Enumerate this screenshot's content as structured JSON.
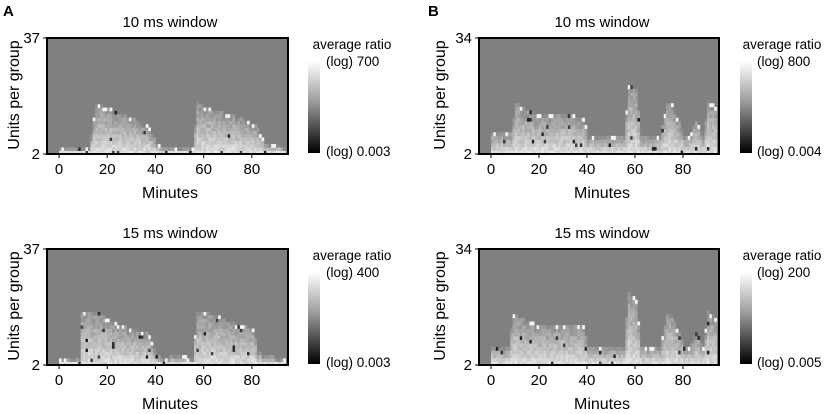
{
  "figure": {
    "panel_labels": [
      "A",
      "B"
    ]
  },
  "chart_data": [
    {
      "type": "heatmap",
      "panel": "A",
      "title": "10 ms window",
      "xlabel": "Minutes",
      "ylabel": "Units per group",
      "xlim": [
        -5,
        95
      ],
      "x_ticks": [
        0,
        20,
        40,
        60,
        80
      ],
      "x_tick_labels": [
        "0",
        "20",
        "40",
        "60",
        "80"
      ],
      "ylim": [
        2,
        37
      ],
      "y_ticks": [
        2,
        37
      ],
      "y_tick_labels": [
        "2",
        "37"
      ],
      "colorbar": {
        "label": "average ratio",
        "scale": "log",
        "max_label": "(log) 700",
        "min_label": "(log) 0.003",
        "max": 700,
        "min": 0.003
      },
      "profile_minutes": [
        2,
        12,
        15,
        20,
        25,
        30,
        35,
        37,
        40,
        42,
        50,
        55,
        57,
        60,
        65,
        70,
        75,
        80,
        82,
        85,
        90,
        93
      ],
      "profile_max_units": [
        3,
        3,
        16,
        15,
        13,
        12,
        10,
        9,
        4,
        3,
        3,
        3,
        17,
        15,
        14,
        13,
        12,
        10,
        9,
        4,
        4,
        3
      ]
    },
    {
      "type": "heatmap",
      "panel": "A",
      "title": "15 ms window",
      "xlabel": "Minutes",
      "ylabel": "Units per group",
      "xlim": [
        -5,
        95
      ],
      "x_ticks": [
        0,
        20,
        40,
        60,
        80
      ],
      "x_tick_labels": [
        "0",
        "20",
        "40",
        "60",
        "80"
      ],
      "ylim": [
        2,
        37
      ],
      "y_ticks": [
        2,
        37
      ],
      "y_tick_labels": [
        "2",
        "37"
      ],
      "colorbar": {
        "label": "average ratio",
        "scale": "log",
        "max_label": "(log) 400",
        "min_label": "(log) 0.003",
        "max": 400,
        "min": 0.003
      },
      "profile_minutes": [
        2,
        8,
        9,
        15,
        20,
        25,
        30,
        35,
        37,
        40,
        42,
        50,
        55,
        57,
        60,
        65,
        70,
        75,
        80,
        82,
        85,
        93
      ],
      "profile_max_units": [
        3,
        3,
        17,
        17,
        15,
        13,
        12,
        11,
        10,
        4,
        3,
        4,
        3,
        17,
        17,
        16,
        14,
        13,
        12,
        5,
        4,
        3
      ]
    },
    {
      "type": "heatmap",
      "panel": "B",
      "title": "10 ms window",
      "xlabel": "Minutes",
      "ylabel": "Units per group",
      "xlim": [
        -5,
        95
      ],
      "x_ticks": [
        0,
        20,
        40,
        60,
        80
      ],
      "x_tick_labels": [
        "0",
        "20",
        "40",
        "60",
        "80"
      ],
      "ylim": [
        2,
        34
      ],
      "y_ticks": [
        2,
        34
      ],
      "y_tick_labels": [
        "2",
        "34"
      ],
      "colorbar": {
        "label": "average ratio",
        "scale": "log",
        "max_label": "(log) 800",
        "min_label": "(log) 0.004",
        "max": 800,
        "min": 0.004
      },
      "profile_minutes": [
        0,
        8,
        10,
        15,
        20,
        30,
        38,
        40,
        50,
        55,
        57,
        60,
        62,
        65,
        70,
        73,
        75,
        80,
        82,
        85,
        88,
        90,
        93
      ],
      "profile_max_units": [
        7,
        7,
        15,
        13,
        12,
        12,
        11,
        6,
        6,
        6,
        20,
        19,
        6,
        6,
        6,
        15,
        15,
        6,
        6,
        10,
        6,
        16,
        14
      ]
    },
    {
      "type": "heatmap",
      "panel": "B",
      "title": "15 ms window",
      "xlabel": "Minutes",
      "ylabel": "Units per group",
      "xlim": [
        -5,
        95
      ],
      "x_ticks": [
        0,
        20,
        40,
        60,
        80
      ],
      "x_tick_labels": [
        "0",
        "20",
        "40",
        "60",
        "80"
      ],
      "ylim": [
        2,
        34
      ],
      "y_ticks": [
        2,
        34
      ],
      "y_tick_labels": [
        "2",
        "34"
      ],
      "colorbar": {
        "label": "average ratio",
        "scale": "log",
        "max_label": "(log) 200",
        "min_label": "(log) 0.005",
        "max": 200,
        "min": 0.005
      },
      "profile_minutes": [
        0,
        7,
        9,
        15,
        20,
        30,
        38,
        40,
        50,
        55,
        57,
        60,
        62,
        65,
        70,
        73,
        75,
        80,
        82,
        85,
        88,
        90,
        93
      ],
      "profile_max_units": [
        6,
        6,
        15,
        13,
        12,
        12,
        12,
        6,
        6,
        6,
        21,
        19,
        6,
        6,
        6,
        15,
        15,
        6,
        6,
        10,
        6,
        16,
        14
      ]
    }
  ]
}
